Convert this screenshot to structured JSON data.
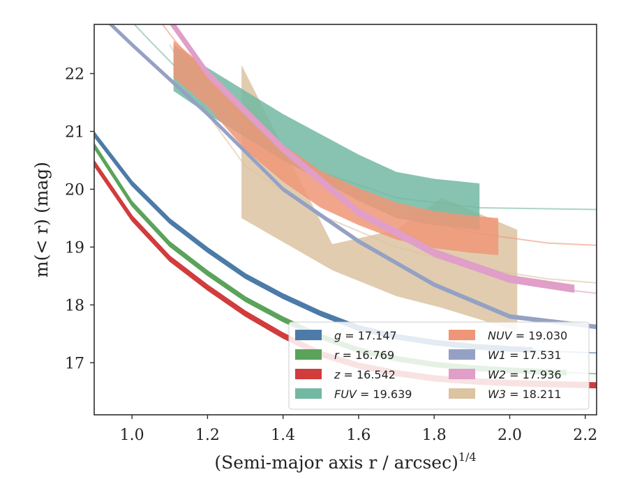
{
  "chart_data": {
    "type": "line",
    "xlabel": "(Semi-major axis r / arcsec)",
    "xlabel_sup": "1/4",
    "ylabel": "m(< r) (mag)",
    "xlim": [
      0.9,
      2.23
    ],
    "ylim": [
      22.85,
      16.1
    ],
    "y_inverted": true,
    "xticks": [
      1.0,
      1.2,
      1.4,
      1.6,
      1.8,
      2.0,
      2.2
    ],
    "yticks": [
      17,
      18,
      19,
      20,
      21,
      22
    ],
    "xtick_labels": [
      "1.0",
      "1.2",
      "1.4",
      "1.6",
      "1.8",
      "2.0",
      "2.2"
    ],
    "ytick_labels": [
      "17",
      "18",
      "19",
      "20",
      "21",
      "22"
    ],
    "grid": false,
    "legend_position": "bottom-right",
    "legend_columns": 2,
    "series": [
      {
        "key": "g",
        "name": "g = 17.147",
        "color": "#4c7ba8",
        "x": [
          0.9,
          1.0,
          1.1,
          1.2,
          1.3,
          1.4,
          1.5,
          1.6,
          1.7,
          1.8,
          1.9,
          2.0,
          2.06
        ],
        "y": [
          20.95,
          20.1,
          19.45,
          18.95,
          18.5,
          18.15,
          17.85,
          17.6,
          17.45,
          17.35,
          17.28,
          17.24,
          17.22
        ],
        "band": 0.04,
        "ext_x": [
          2.06,
          2.1,
          2.23
        ],
        "ext_y": [
          17.22,
          17.2,
          17.17
        ]
      },
      {
        "key": "r",
        "name": "r = 16.769",
        "color": "#5ba35b",
        "x": [
          0.9,
          1.0,
          1.1,
          1.2,
          1.3,
          1.4,
          1.5,
          1.6,
          1.7,
          1.8,
          1.9,
          2.0,
          2.1,
          2.15
        ],
        "y": [
          20.75,
          19.75,
          19.05,
          18.55,
          18.1,
          17.75,
          17.45,
          17.22,
          17.07,
          16.97,
          16.91,
          16.87,
          16.84,
          16.83
        ],
        "band": 0.04,
        "ext_x": [
          2.15,
          2.23
        ],
        "ext_y": [
          16.83,
          16.81
        ]
      },
      {
        "key": "z",
        "name": "z = 16.542",
        "color": "#d13c3c",
        "x": [
          0.9,
          1.0,
          1.1,
          1.2,
          1.3,
          1.4,
          1.5,
          1.6,
          1.7,
          1.8,
          1.9,
          2.0,
          2.1,
          2.23
        ],
        "y": [
          20.45,
          19.5,
          18.8,
          18.3,
          17.85,
          17.47,
          17.15,
          16.95,
          16.82,
          16.73,
          16.68,
          16.65,
          16.63,
          16.61
        ],
        "band": 0.045,
        "ext_x": [],
        "ext_y": []
      },
      {
        "key": "FUV",
        "name": "FUV = 19.639",
        "color": "#72b8a2",
        "x": [
          1.11,
          1.2,
          1.3,
          1.4,
          1.5,
          1.6,
          1.7,
          1.8,
          1.92
        ],
        "y": [
          22.1,
          21.7,
          21.3,
          20.9,
          20.55,
          20.2,
          19.9,
          19.78,
          19.7
        ],
        "band": 0.4,
        "ext_x": [
          0.97,
          1.05,
          1.11,
          1.3,
          1.5,
          1.7,
          1.92,
          2.23
        ],
        "ext_y": [
          23.1,
          22.55,
          22.15,
          21.1,
          20.3,
          19.85,
          19.68,
          19.65
        ]
      },
      {
        "key": "NUV",
        "name": "NUV = 19.030",
        "color": "#ee9677",
        "x": [
          1.11,
          1.2,
          1.3,
          1.4,
          1.5,
          1.6,
          1.7,
          1.8,
          1.9,
          1.97
        ],
        "y": [
          22.25,
          21.75,
          21.0,
          20.45,
          20.0,
          19.7,
          19.45,
          19.3,
          19.22,
          19.18
        ],
        "band": 0.32,
        "ext_x": [
          1.04,
          1.11,
          1.3,
          1.5,
          1.7,
          1.9,
          2.1,
          2.23
        ],
        "ext_y": [
          23.2,
          22.6,
          21.1,
          20.2,
          19.6,
          19.25,
          19.07,
          19.03
        ]
      },
      {
        "key": "W1",
        "name": "W1 = 17.531",
        "color": "#95a1c4",
        "x": [
          0.92,
          1.0,
          1.2,
          1.4,
          1.6,
          1.8,
          2.0,
          2.23
        ],
        "y": [
          23.0,
          22.5,
          21.3,
          20.0,
          19.1,
          18.35,
          17.8,
          17.62
        ],
        "band": 0.03,
        "ext_x": [],
        "ext_y": []
      },
      {
        "key": "W2",
        "name": "W2 = 17.936",
        "color": "#e09ec8",
        "x": [
          1.07,
          1.2,
          1.4,
          1.6,
          1.8,
          2.0,
          2.17
        ],
        "y": [
          23.2,
          22.0,
          20.7,
          19.6,
          18.9,
          18.45,
          18.28
        ],
        "band": 0.06,
        "ext_x": [
          2.0,
          2.1,
          2.23
        ],
        "ext_y": [
          18.45,
          18.3,
          18.2
        ]
      },
      {
        "key": "W3",
        "name": "W3 = 18.211",
        "color": "#dcc3a1",
        "x": [
          1.29,
          1.53,
          1.7,
          1.82,
          2.02
        ],
        "y_lower": [
          22.15,
          19.05,
          19.3,
          19.85,
          19.3
        ],
        "y_upper": [
          19.5,
          18.6,
          18.15,
          17.95,
          17.55
        ],
        "ext_x": [
          1.1,
          1.2,
          1.3,
          1.5,
          1.7,
          1.9,
          2.1,
          2.23
        ],
        "ext_y": [
          22.5,
          21.3,
          20.4,
          19.55,
          19.0,
          18.65,
          18.45,
          18.38
        ]
      }
    ],
    "legend_items": [
      {
        "series": "g",
        "label": "g = 17.147"
      },
      {
        "series": "r",
        "label": "r = 16.769"
      },
      {
        "series": "z",
        "label": "z = 16.542"
      },
      {
        "series": "FUV",
        "label": "FUV = 19.639"
      },
      {
        "series": "NUV",
        "label": "NUV = 19.030"
      },
      {
        "series": "W1",
        "label": "W1 = 17.531"
      },
      {
        "series": "W2",
        "label": "W2 = 17.936"
      },
      {
        "series": "W3",
        "label": "W3 = 18.211"
      }
    ]
  }
}
